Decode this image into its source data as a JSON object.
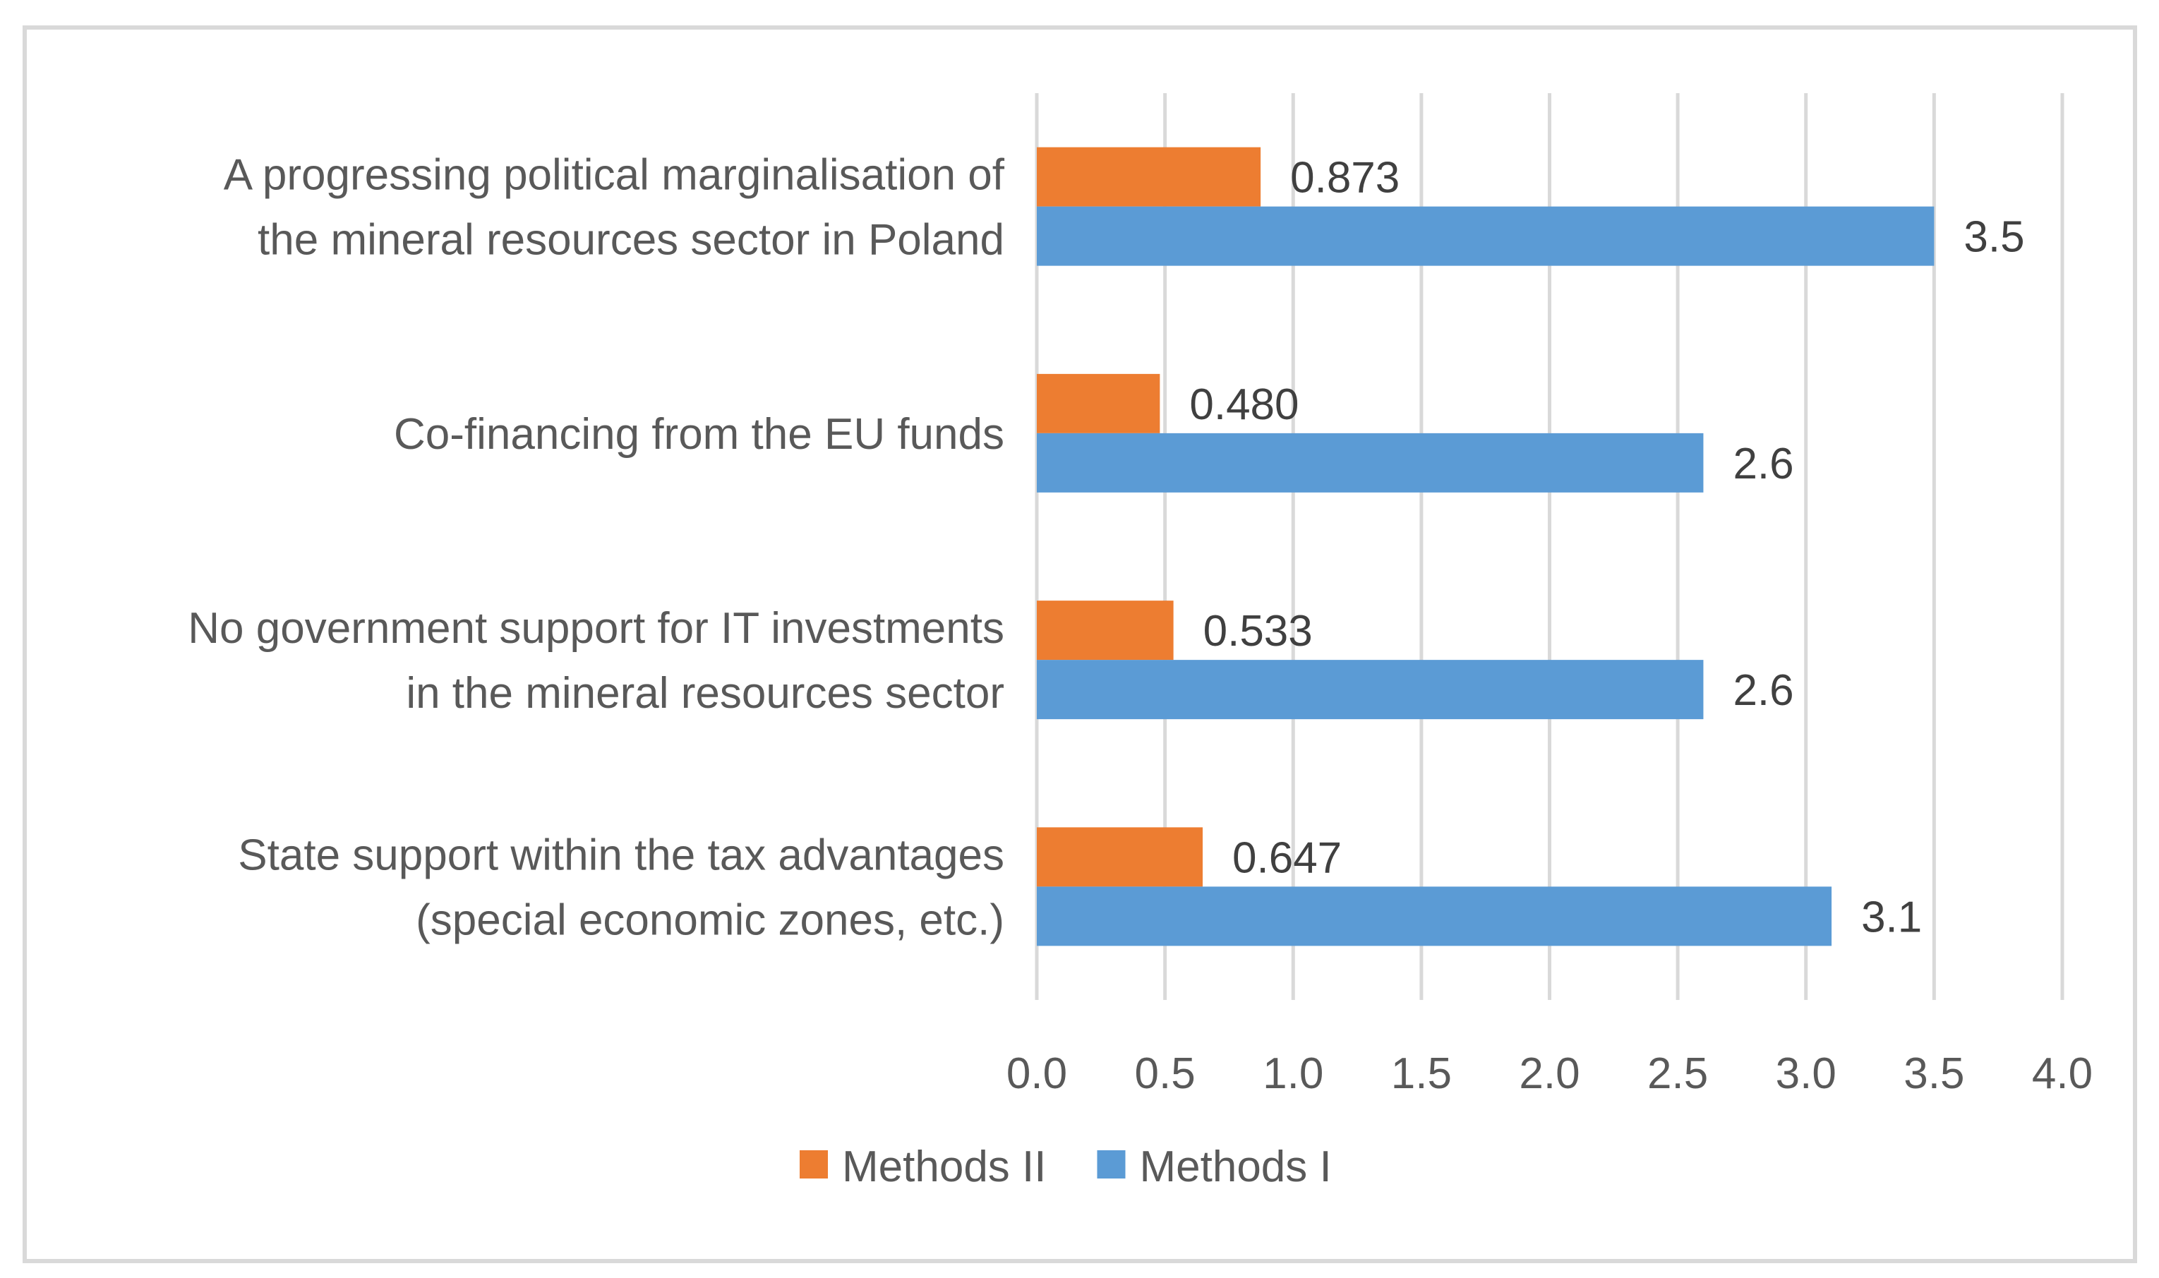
{
  "chart_data": {
    "type": "bar",
    "orientation": "horizontal",
    "categories": [
      [
        "A progressing political marginalisation of",
        "the mineral resources sector in Poland"
      ],
      [
        "Co-financing from the EU funds"
      ],
      [
        "No government support for IT investments",
        "in the mineral resources sector"
      ],
      [
        "State support within the tax advantages",
        "(special economic zones, etc.)"
      ]
    ],
    "series": [
      {
        "name": "Methods II",
        "color": "#ed7d31",
        "values": [
          0.873,
          0.48,
          0.533,
          0.647
        ],
        "labels": [
          "0.873",
          "0.480",
          "0.533",
          "0.647"
        ]
      },
      {
        "name": "Methods I",
        "color": "#5b9bd5",
        "values": [
          3.5,
          2.6,
          2.6,
          3.1
        ],
        "labels": [
          "3.5",
          "2.6",
          "2.6",
          "3.1"
        ]
      }
    ],
    "xlim": [
      0,
      4
    ],
    "ticks": [
      "0.0",
      "0.5",
      "1.0",
      "1.5",
      "2.0",
      "2.5",
      "3.0",
      "3.5",
      "4.0"
    ],
    "grid": true,
    "legend_position": "bottom",
    "title": "",
    "xlabel": "",
    "ylabel": ""
  }
}
